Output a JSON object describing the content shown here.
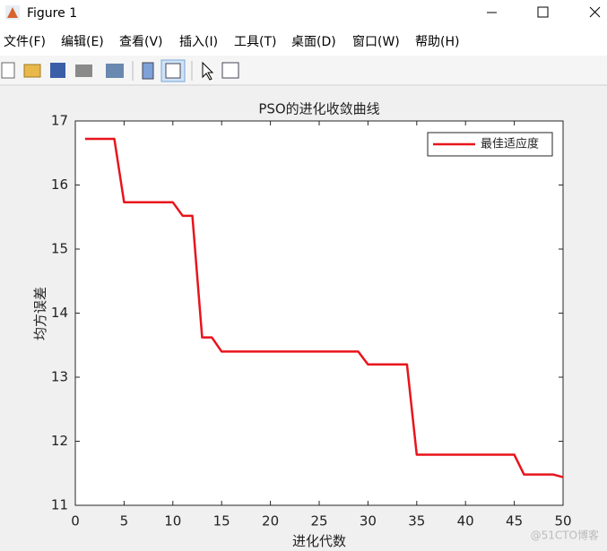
{
  "window": {
    "title": "Figure 1",
    "menu": [
      "文件(F)",
      "编辑(E)",
      "查看(V)",
      "插入(I)",
      "工具(T)",
      "桌面(D)",
      "窗口(W)",
      "帮助(H)"
    ],
    "watermark": "@51CTO博客"
  },
  "chart_data": {
    "type": "line",
    "title": "PSO的进化收敛曲线",
    "x_label": "进化代数",
    "y_label": "均方误差",
    "x": [
      1,
      2,
      3,
      4,
      5,
      6,
      7,
      8,
      9,
      10,
      11,
      12,
      13,
      14,
      15,
      16,
      17,
      18,
      19,
      20,
      21,
      22,
      23,
      24,
      25,
      26,
      27,
      28,
      29,
      30,
      31,
      32,
      33,
      34,
      35,
      36,
      37,
      38,
      39,
      40,
      41,
      42,
      43,
      44,
      45,
      46,
      47,
      48,
      49,
      50
    ],
    "series": [
      {
        "name": "最佳适应度",
        "color": "#e8141c",
        "values": [
          16.72,
          16.72,
          16.72,
          16.72,
          15.73,
          15.73,
          15.73,
          15.73,
          15.73,
          15.73,
          15.52,
          15.52,
          13.62,
          13.62,
          13.4,
          13.4,
          13.4,
          13.4,
          13.4,
          13.4,
          13.4,
          13.4,
          13.4,
          13.4,
          13.4,
          13.4,
          13.4,
          13.4,
          13.4,
          13.2,
          13.2,
          13.2,
          13.2,
          13.2,
          11.79,
          11.79,
          11.79,
          11.79,
          11.79,
          11.79,
          11.79,
          11.79,
          11.79,
          11.79,
          11.79,
          11.48,
          11.48,
          11.48,
          11.48,
          11.44
        ]
      }
    ],
    "xlim": [
      0,
      50
    ],
    "ylim": [
      11,
      17
    ],
    "xticks": [
      0,
      5,
      10,
      15,
      20,
      25,
      30,
      35,
      40,
      45,
      50
    ],
    "yticks": [
      11,
      12,
      13,
      14,
      15,
      16,
      17
    ],
    "grid": false,
    "legend": "upper right"
  }
}
